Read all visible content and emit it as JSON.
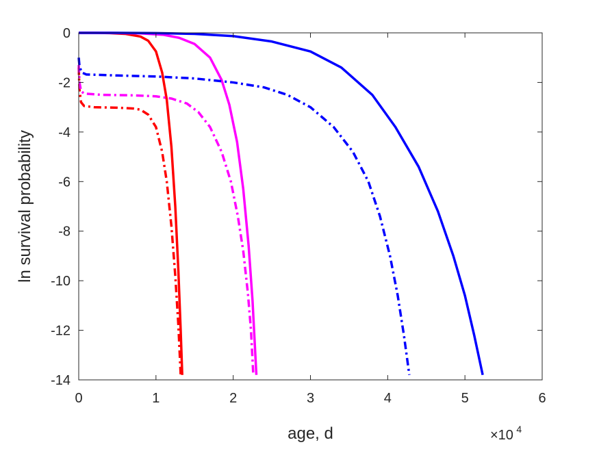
{
  "chart_data": {
    "type": "line",
    "xlabel": "age, d",
    "ylabel": "ln survival probability",
    "x_exponent_label": {
      "base": "×10",
      "power": "4"
    },
    "xlim": [
      0,
      60000
    ],
    "ylim": [
      -14,
      0
    ],
    "x_ticks": [
      0,
      10000,
      20000,
      30000,
      40000,
      50000,
      60000
    ],
    "x_tick_labels": [
      "0",
      "1",
      "2",
      "3",
      "4",
      "5",
      "6"
    ],
    "y_ticks": [
      0,
      -2,
      -4,
      -6,
      -8,
      -10,
      -12,
      -14
    ],
    "y_tick_labels": [
      "0",
      "-2",
      "-4",
      "-6",
      "-8",
      "-10",
      "-12",
      "-14"
    ],
    "grid": false,
    "colors": {
      "red": "#ff0000",
      "magenta": "#ff00ff",
      "blue": "#0000ff",
      "axis": "#262626"
    },
    "series": [
      {
        "color": "#ff0000",
        "style": "solid",
        "points": [
          [
            0,
            0
          ],
          [
            2000,
            0
          ],
          [
            4000,
            -0.01
          ],
          [
            6000,
            -0.04
          ],
          [
            8000,
            -0.15
          ],
          [
            9000,
            -0.32
          ],
          [
            10000,
            -0.75
          ],
          [
            10800,
            -1.6
          ],
          [
            11400,
            -2.7
          ],
          [
            12000,
            -4.6
          ],
          [
            12500,
            -7.0
          ],
          [
            12900,
            -9.6
          ],
          [
            13200,
            -12.0
          ],
          [
            13400,
            -13.8
          ]
        ]
      },
      {
        "color": "#ff0000",
        "style": "dashdot",
        "points": [
          [
            0,
            -1.4
          ],
          [
            100,
            -2.3
          ],
          [
            300,
            -2.8
          ],
          [
            700,
            -2.95
          ],
          [
            2000,
            -3.0
          ],
          [
            5000,
            -3.02
          ],
          [
            7000,
            -3.05
          ],
          [
            8000,
            -3.1
          ],
          [
            9000,
            -3.3
          ],
          [
            10000,
            -3.8
          ],
          [
            10800,
            -4.8
          ],
          [
            11400,
            -6.0
          ],
          [
            12000,
            -7.8
          ],
          [
            12500,
            -9.8
          ],
          [
            12900,
            -11.8
          ],
          [
            13200,
            -13.8
          ]
        ]
      },
      {
        "color": "#ff00ff",
        "style": "solid",
        "points": [
          [
            0,
            0
          ],
          [
            4000,
            0
          ],
          [
            8000,
            -0.02
          ],
          [
            11000,
            -0.08
          ],
          [
            13000,
            -0.2
          ],
          [
            15000,
            -0.45
          ],
          [
            17000,
            -1.0
          ],
          [
            18500,
            -1.9
          ],
          [
            19500,
            -2.9
          ],
          [
            20500,
            -4.4
          ],
          [
            21300,
            -6.3
          ],
          [
            22000,
            -8.6
          ],
          [
            22500,
            -10.8
          ],
          [
            23000,
            -13.8
          ]
        ]
      },
      {
        "color": "#ff00ff",
        "style": "dashdot",
        "points": [
          [
            0,
            -1.3
          ],
          [
            100,
            -2.0
          ],
          [
            300,
            -2.35
          ],
          [
            700,
            -2.45
          ],
          [
            3000,
            -2.5
          ],
          [
            7000,
            -2.52
          ],
          [
            10000,
            -2.56
          ],
          [
            12000,
            -2.65
          ],
          [
            14000,
            -2.85
          ],
          [
            15500,
            -3.2
          ],
          [
            17000,
            -3.8
          ],
          [
            18500,
            -4.8
          ],
          [
            19700,
            -6.0
          ],
          [
            20600,
            -7.4
          ],
          [
            21300,
            -8.8
          ],
          [
            21900,
            -10.5
          ],
          [
            22300,
            -12.0
          ],
          [
            22600,
            -13.8
          ]
        ]
      },
      {
        "color": "#0000ff",
        "style": "solid",
        "points": [
          [
            0,
            0
          ],
          [
            5000,
            0
          ],
          [
            10000,
            -0.01
          ],
          [
            15000,
            -0.04
          ],
          [
            20000,
            -0.13
          ],
          [
            25000,
            -0.35
          ],
          [
            30000,
            -0.75
          ],
          [
            34000,
            -1.4
          ],
          [
            38000,
            -2.5
          ],
          [
            41000,
            -3.8
          ],
          [
            44000,
            -5.4
          ],
          [
            46500,
            -7.2
          ],
          [
            48500,
            -9.0
          ],
          [
            50000,
            -10.6
          ],
          [
            51200,
            -12.2
          ],
          [
            52300,
            -13.8
          ]
        ]
      },
      {
        "color": "#0000ff",
        "style": "dashdot",
        "points": [
          [
            0,
            -1.0
          ],
          [
            100,
            -1.35
          ],
          [
            400,
            -1.6
          ],
          [
            1000,
            -1.68
          ],
          [
            5000,
            -1.72
          ],
          [
            10000,
            -1.76
          ],
          [
            15000,
            -1.84
          ],
          [
            20000,
            -2.0
          ],
          [
            24000,
            -2.2
          ],
          [
            27000,
            -2.5
          ],
          [
            30000,
            -3.0
          ],
          [
            33000,
            -3.8
          ],
          [
            35500,
            -4.8
          ],
          [
            37500,
            -6.0
          ],
          [
            39000,
            -7.4
          ],
          [
            40300,
            -9.0
          ],
          [
            41300,
            -10.6
          ],
          [
            42100,
            -12.2
          ],
          [
            42800,
            -13.8
          ]
        ]
      }
    ]
  }
}
